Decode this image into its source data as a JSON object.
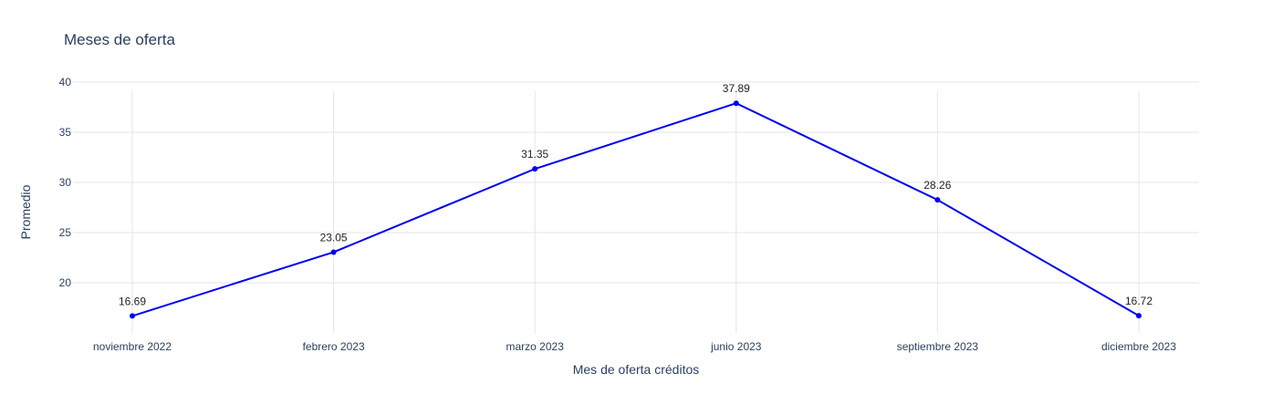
{
  "chart_data": {
    "type": "line",
    "title": "Meses de oferta",
    "xlabel": "Mes de oferta créditos",
    "ylabel": "Promedio",
    "categories": [
      "noviembre 2022",
      "febrero 2023",
      "marzo 2023",
      "junio 2023",
      "septiembre 2023",
      "diciembre 2023"
    ],
    "series": [
      {
        "values": [
          16.69,
          23.05,
          31.35,
          37.89,
          28.26,
          16.72
        ],
        "data_labels": [
          "16.69",
          "23.05",
          "31.35",
          "37.89",
          "28.26",
          "16.72"
        ],
        "color": "#0000ee"
      }
    ],
    "ylim": [
      15,
      40
    ],
    "yticks": [
      20,
      25,
      30,
      35,
      40
    ],
    "grid": true,
    "markers": true
  }
}
